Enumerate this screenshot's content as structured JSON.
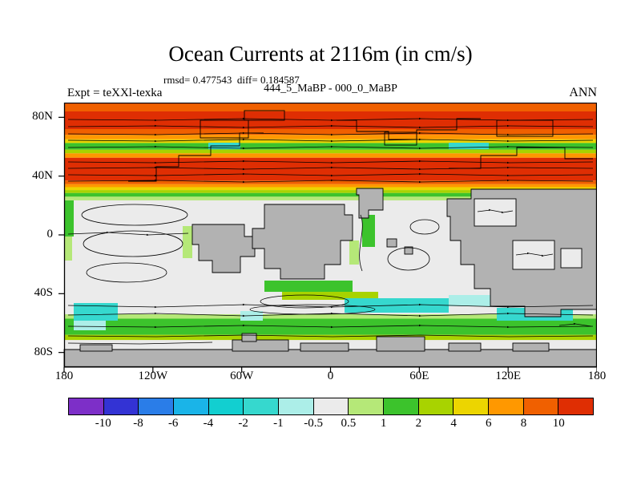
{
  "header": {
    "title": "Ocean Currents at 2116m (in cm/s)",
    "stats_line": "rmsd= 0.477543  diff= 0.184587",
    "run_label": "444_5_MaBP - 000_0_MaBP",
    "experiment_label": "Expt = teXXl-texka",
    "season_label": "ANN"
  },
  "colors": {
    "land": "#b2b2b2",
    "ocean": "#ebebeb",
    "coastline": "#000000",
    "background": "#ffffff"
  },
  "chart_data": {
    "type": "heatmap",
    "title": "Ocean Currents at 2116m (in cm/s)",
    "subtitle": "444_5_MaBP - 000_0_MaBP",
    "stats": {
      "rmsd": 0.477543,
      "diff": 0.184587
    },
    "experiment": "teXXl-texka",
    "season": "ANN",
    "depth_m": 2116,
    "units": "cm/s",
    "x_axis": {
      "ticks": [
        "180",
        "120W",
        "60W",
        "0",
        "60E",
        "120E",
        "180"
      ],
      "range_deg": [
        -180,
        180
      ]
    },
    "y_axis": {
      "ticks": [
        {
          "label": "80N",
          "lat": 80
        },
        {
          "label": "40N",
          "lat": 40
        },
        {
          "label": "0",
          "lat": 0
        },
        {
          "label": "40S",
          "lat": -40
        },
        {
          "label": "80S",
          "lat": -80
        }
      ],
      "range_deg": [
        90,
        -90
      ]
    },
    "colorbar": {
      "levels": [
        -10,
        -8,
        -6,
        -4,
        -2,
        -1,
        -0.5,
        0.5,
        1,
        2,
        4,
        6,
        8,
        10
      ],
      "labels": [
        "-10",
        "-8",
        "-6",
        "-4",
        "-2",
        "-1",
        "-0.5",
        "0.5",
        "1",
        "2",
        "4",
        "6",
        "8",
        "10"
      ],
      "colors": [
        "#7d2fc8",
        "#3333d4",
        "#2a7de8",
        "#1ab4e8",
        "#12cfd0",
        "#36d8ce",
        "#aceee8",
        "#ebebeb",
        "#b5e878",
        "#3cc32c",
        "#a8d300",
        "#ecd500",
        "#ff9800",
        "#f06000",
        "#df2e03"
      ]
    },
    "latitude_bands": [
      {
        "from": 90,
        "to": 84,
        "colorIndex": 13,
        "value": "8 to 10"
      },
      {
        "from": 84,
        "to": 72,
        "colorIndex": 14,
        "value": "> 10"
      },
      {
        "from": 72,
        "to": 68,
        "colorIndex": 13,
        "value": "8 to 10"
      },
      {
        "from": 68,
        "to": 65,
        "colorIndex": 12,
        "value": "6 to 8"
      },
      {
        "from": 65,
        "to": 62.5,
        "colorIndex": 11,
        "value": "4 to 6"
      },
      {
        "from": 62.5,
        "to": 58,
        "colorIndex": 9,
        "value": "1 to 2"
      },
      {
        "from": 58,
        "to": 55.5,
        "colorIndex": 10,
        "value": "2 to 4"
      },
      {
        "from": 55.5,
        "to": 52.5,
        "colorIndex": 12,
        "value": "6 to 8"
      },
      {
        "from": 52.5,
        "to": 37,
        "colorIndex": 14,
        "value": "> 10"
      },
      {
        "from": 37,
        "to": 34.5,
        "colorIndex": 13,
        "value": "8 to 10"
      },
      {
        "from": 34.5,
        "to": 32.5,
        "colorIndex": 12,
        "value": "6 to 8"
      },
      {
        "from": 32.5,
        "to": 30.5,
        "colorIndex": 11,
        "value": "4 to 6"
      },
      {
        "from": 30.5,
        "to": 28.5,
        "colorIndex": 10,
        "value": "2 to 4"
      },
      {
        "from": 28.5,
        "to": 26,
        "colorIndex": 9,
        "value": "1 to 2"
      },
      {
        "from": 26,
        "to": 23.5,
        "colorIndex": 8,
        "value": "0.5 to 1"
      },
      {
        "from": -54,
        "to": -57,
        "colorIndex": 8,
        "value": "0.5 to 1"
      },
      {
        "from": -57,
        "to": -68,
        "colorIndex": 9,
        "value": "1 to 2"
      },
      {
        "from": -68,
        "to": -71.5,
        "colorIndex": 10,
        "value": "2 to 4"
      }
    ],
    "notes": "Filled-contour current-speed difference map (444.5 MaBP minus 0 MaBP). Strong positive (red/orange) zonal bands 37N-90N; near-zero (gray-white) mid/low-latitude ocean with green fringes along boundaries; negative (cyan) patches 35S-55S; green circumpolar band near 60S. Gray = land / no data at 2116 m depth. Black curves = current streamlines with arrowheads."
  }
}
